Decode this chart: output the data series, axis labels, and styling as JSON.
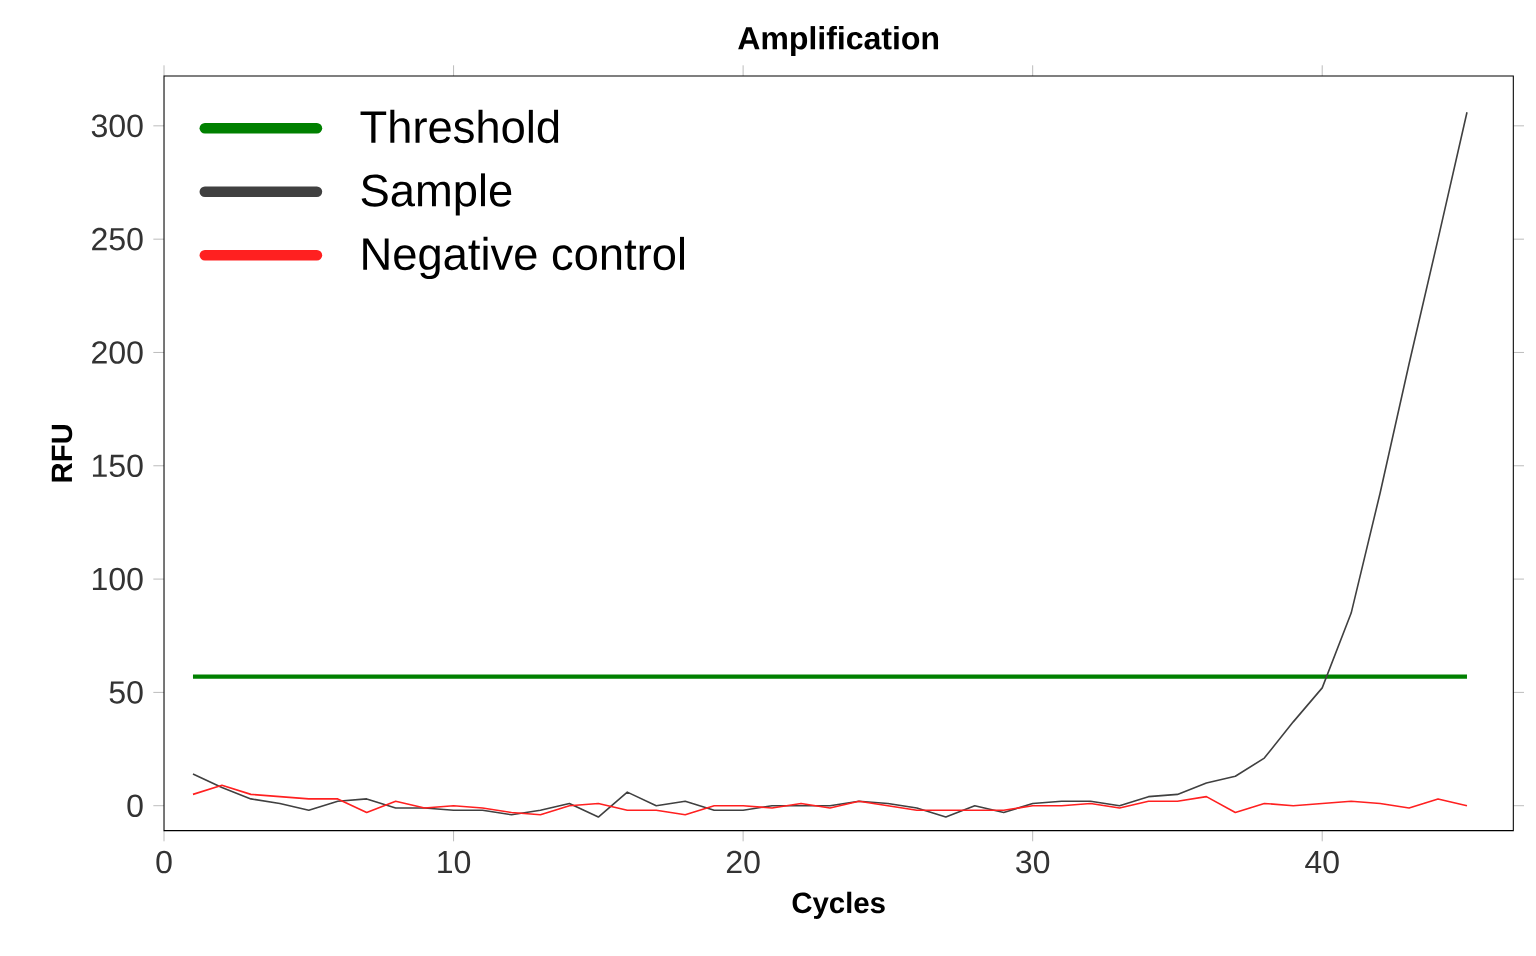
{
  "chart_data": {
    "type": "line",
    "title": "Amplification",
    "xlabel": "Cycles",
    "ylabel": "RFU",
    "x": [
      1,
      2,
      3,
      4,
      5,
      6,
      7,
      8,
      9,
      10,
      11,
      12,
      13,
      14,
      15,
      16,
      17,
      18,
      19,
      20,
      21,
      22,
      23,
      24,
      25,
      26,
      27,
      28,
      29,
      30,
      31,
      32,
      33,
      34,
      35,
      36,
      37,
      38,
      39,
      40,
      41,
      42,
      43,
      44,
      45
    ],
    "series": [
      {
        "name": "Threshold",
        "color": "#008000",
        "x": [
          1,
          45
        ],
        "values": [
          57,
          57
        ]
      },
      {
        "name": "Sample",
        "color": "#404040",
        "values": [
          14,
          8,
          3,
          1,
          -2,
          2,
          3,
          -1,
          -1,
          -2,
          -2,
          -4,
          -2,
          1,
          -5,
          6,
          0,
          2,
          -2,
          -2,
          0,
          0,
          0,
          2,
          1,
          -1,
          -5,
          0,
          -3,
          1,
          2,
          2,
          0,
          4,
          5,
          10,
          13,
          21,
          37,
          52,
          85,
          138,
          195,
          250,
          306
        ]
      },
      {
        "name": "Negative control",
        "color": "#ff2020",
        "values": [
          5,
          9,
          5,
          4,
          3,
          3,
          -3,
          2,
          -1,
          0,
          -1,
          -3,
          -4,
          0,
          1,
          -2,
          -2,
          -4,
          0,
          0,
          -1,
          1,
          -1,
          2,
          0,
          -2,
          -2,
          -2,
          -2,
          0,
          0,
          1,
          -1,
          2,
          2,
          4,
          -3,
          1,
          0,
          1,
          2,
          1,
          -1,
          3,
          0
        ]
      }
    ],
    "xlim": [
      0,
      46.6
    ],
    "ylim": [
      -11,
      322
    ],
    "xticks": [
      0,
      10,
      20,
      30,
      40
    ],
    "yticks": [
      0,
      50,
      100,
      150,
      200,
      250,
      300
    ],
    "grid": false,
    "legend": "top left",
    "marker": "none",
    "line_style": "solid"
  }
}
